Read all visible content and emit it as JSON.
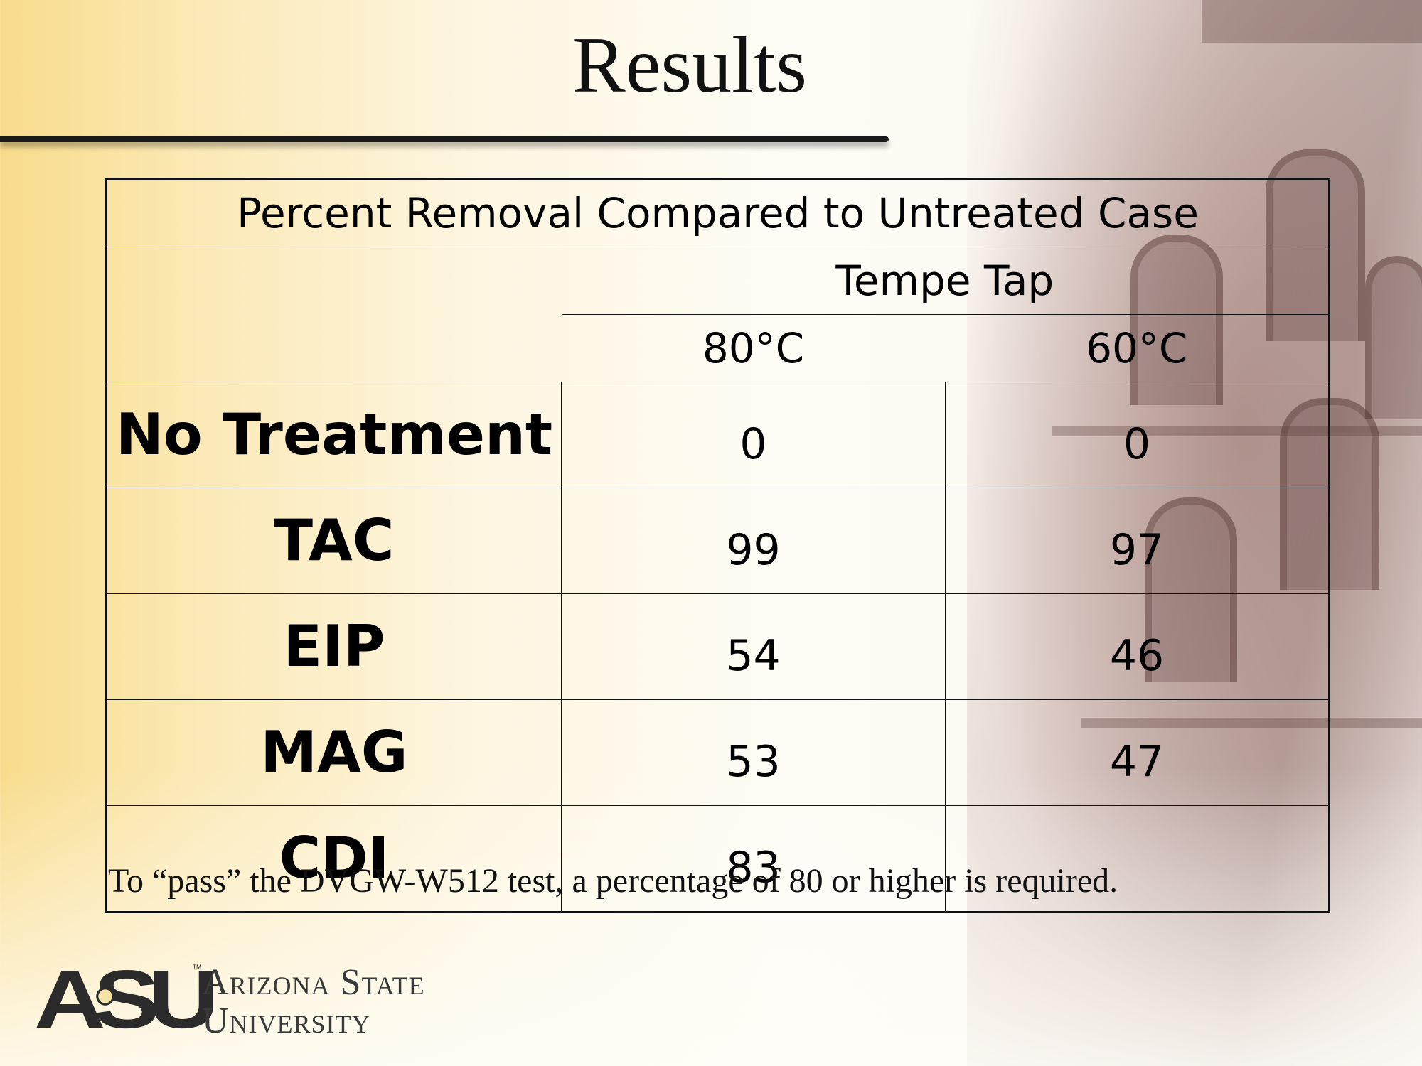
{
  "slide": {
    "title": "Results",
    "footnote": "To “pass” the DVGW-W512 test, a percentage of 80 or higher is required."
  },
  "table": {
    "caption": "Percent Removal Compared to Untreated Case",
    "site": "Tempe Tap",
    "columns": [
      "80°C",
      "60°C"
    ],
    "rows": [
      {
        "label": "No Treatment",
        "values": [
          "0",
          "0"
        ]
      },
      {
        "label": "TAC",
        "values": [
          "99",
          "97"
        ]
      },
      {
        "label": "EIP",
        "values": [
          "54",
          "46"
        ]
      },
      {
        "label": "MAG",
        "values": [
          "53",
          "47"
        ]
      },
      {
        "label": "CDI",
        "values": [
          "83",
          ""
        ]
      }
    ]
  },
  "logo": {
    "mark": "ASU",
    "line1": "Arizona State",
    "line2": "University",
    "tm": "™"
  }
}
